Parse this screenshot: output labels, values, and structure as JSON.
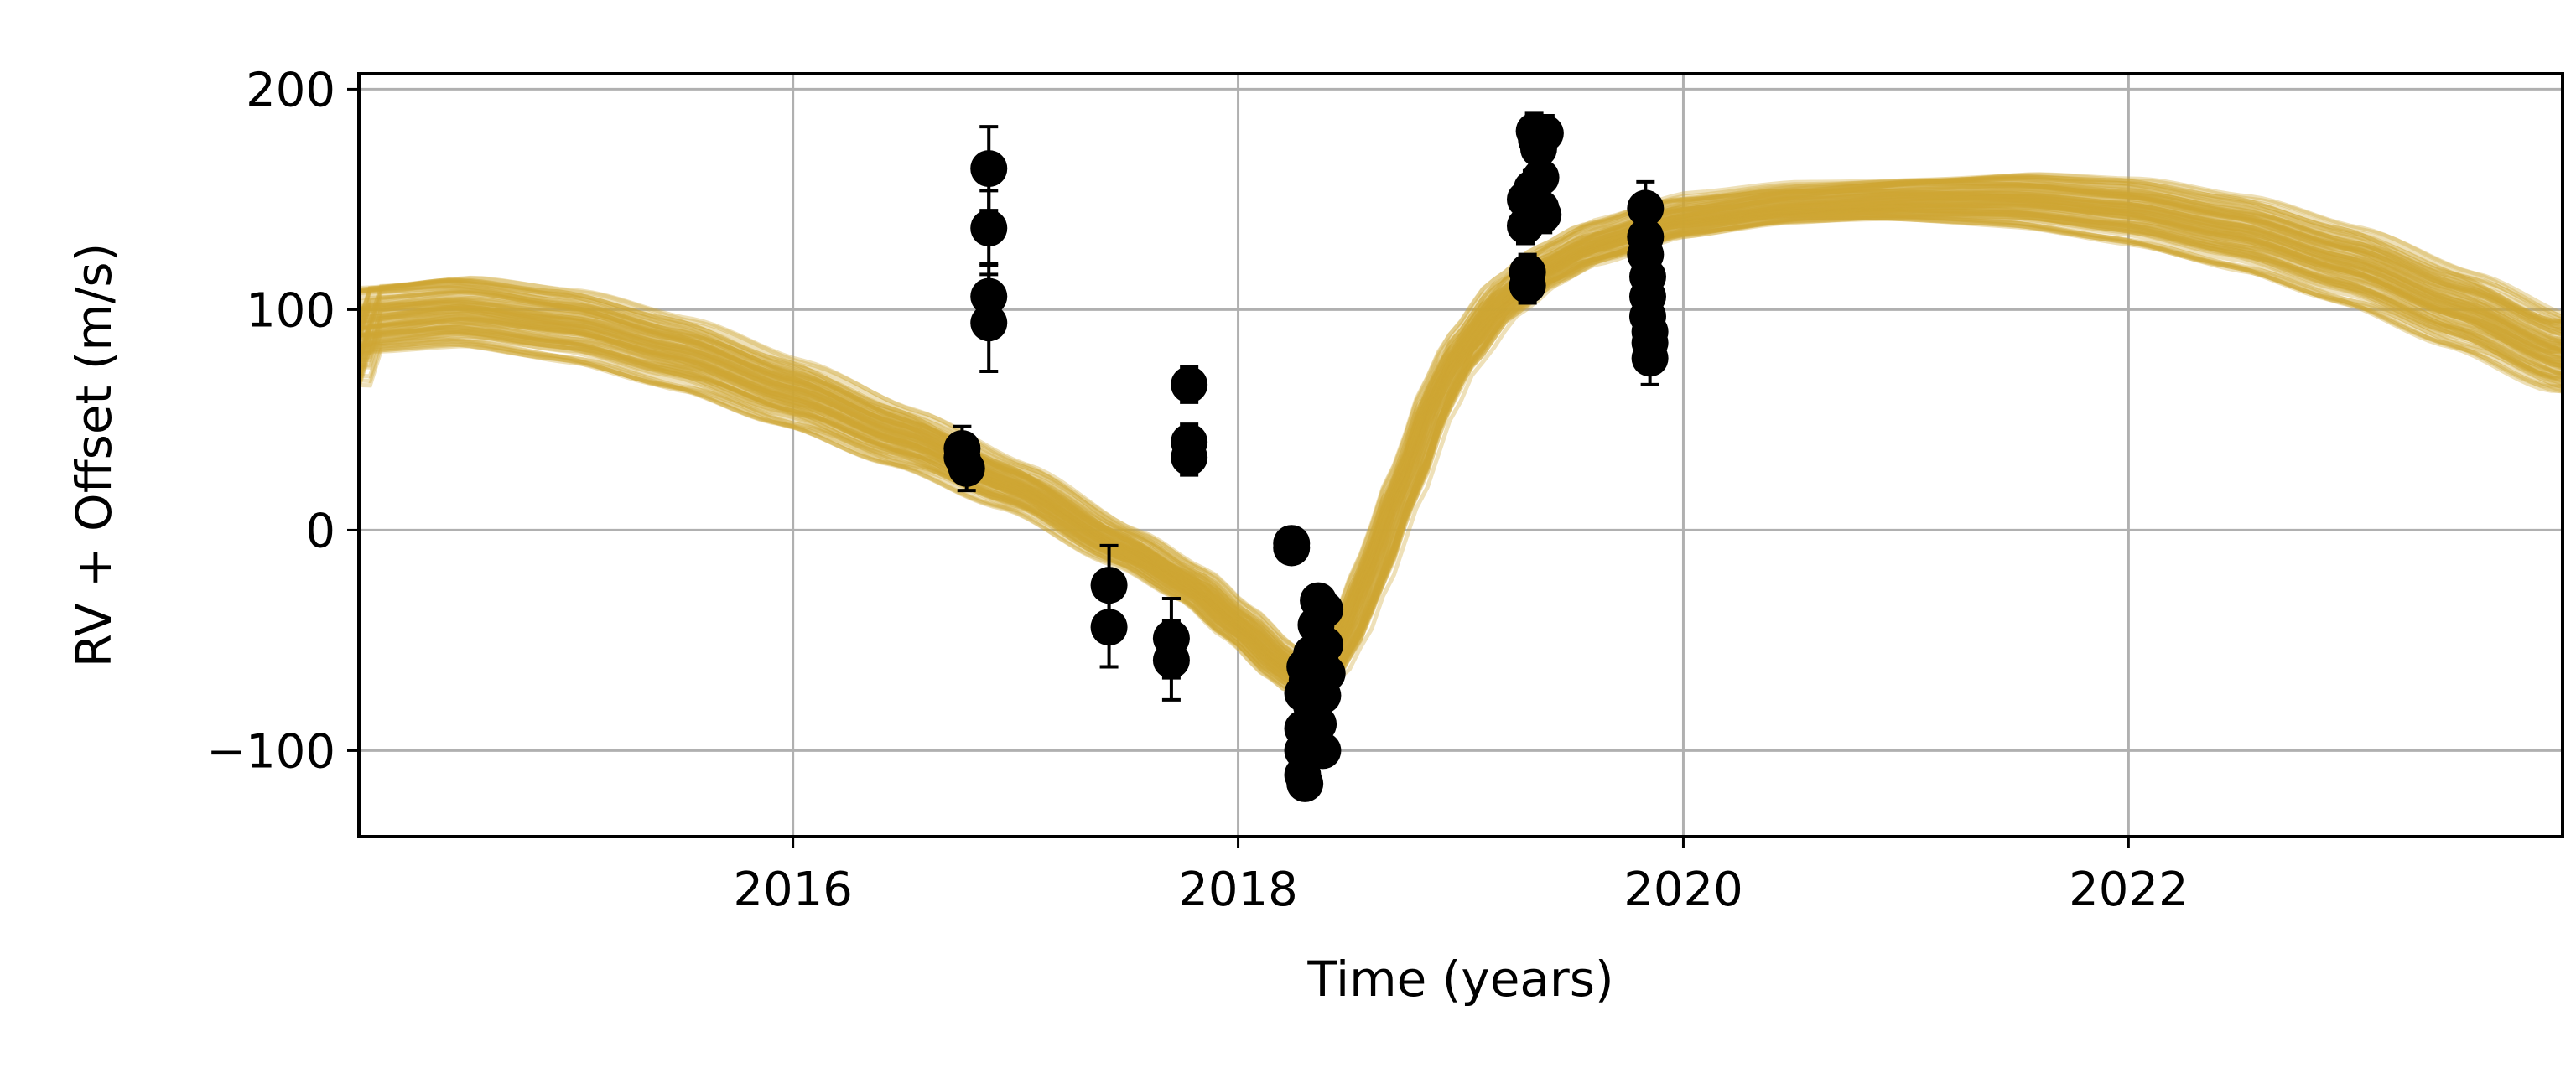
{
  "chart_data": {
    "type": "line",
    "title": "",
    "xlabel": "Time (years)",
    "ylabel": "RV + Offset (m/s)",
    "xlim": [
      2014.05,
      2023.95
    ],
    "ylim": [
      -139,
      207
    ],
    "xticks": [
      2016,
      2018,
      2020,
      2022
    ],
    "yticks": [
      -100,
      0,
      100,
      200
    ],
    "xtick_labels": [
      "2016",
      "2018",
      "2020",
      "2022"
    ],
    "ytick_labels": [
      "−100",
      "0",
      "100",
      "200"
    ],
    "grid": true,
    "legend": "none",
    "model_color": "#CDA535",
    "model_opacity": 0.35,
    "model_curve_count": 100,
    "model_median": [
      [
        2014.05,
        96
      ],
      [
        2014.5,
        100
      ],
      [
        2015.0,
        93
      ],
      [
        2015.5,
        80
      ],
      [
        2016.0,
        62
      ],
      [
        2016.5,
        42
      ],
      [
        2017.0,
        20
      ],
      [
        2017.5,
        -8
      ],
      [
        2017.8,
        -25
      ],
      [
        2018.0,
        -42
      ],
      [
        2018.2,
        -60
      ],
      [
        2018.3,
        -67
      ],
      [
        2018.4,
        -62
      ],
      [
        2018.5,
        -45
      ],
      [
        2018.6,
        -20
      ],
      [
        2018.75,
        20
      ],
      [
        2018.9,
        60
      ],
      [
        2019.0,
        80
      ],
      [
        2019.2,
        105
      ],
      [
        2019.4,
        120
      ],
      [
        2019.6,
        130
      ],
      [
        2020.0,
        142
      ],
      [
        2020.5,
        148
      ],
      [
        2021.0,
        150
      ],
      [
        2021.5,
        150
      ],
      [
        2022.0,
        145
      ],
      [
        2022.5,
        135
      ],
      [
        2023.0,
        120
      ],
      [
        2023.5,
        100
      ],
      [
        2023.95,
        80
      ]
    ],
    "data_color": "#000000",
    "series": [
      {
        "values": [
          {
            "x": 2016.76,
            "y": 37,
            "err": 10
          },
          {
            "x": 2016.76,
            "y": 33,
            "err": 10
          },
          {
            "x": 2016.78,
            "y": 28,
            "err": 10
          },
          {
            "x": 2016.88,
            "y": 164,
            "err": 19
          },
          {
            "x": 2016.88,
            "y": 137,
            "err": 17
          },
          {
            "x": 2016.88,
            "y": 106,
            "err": 15
          },
          {
            "x": 2016.88,
            "y": 94,
            "err": 22
          },
          {
            "x": 2017.42,
            "y": -25,
            "err": 18
          },
          {
            "x": 2017.42,
            "y": -44,
            "err": 18
          },
          {
            "x": 2017.7,
            "y": -49,
            "err": 18
          },
          {
            "x": 2017.7,
            "y": -59,
            "err": 18
          },
          {
            "x": 2017.78,
            "y": 66,
            "err": 8
          },
          {
            "x": 2017.78,
            "y": 40,
            "err": 8
          },
          {
            "x": 2017.78,
            "y": 33,
            "err": 8
          },
          {
            "x": 2018.24,
            "y": -6,
            "err": 3
          },
          {
            "x": 2018.24,
            "y": -8,
            "err": 3
          },
          {
            "x": 2018.29,
            "y": -100,
            "err": 6
          },
          {
            "x": 2018.29,
            "y": -111,
            "err": 6
          },
          {
            "x": 2018.29,
            "y": -90,
            "err": 6
          },
          {
            "x": 2018.29,
            "y": -74,
            "err": 6
          },
          {
            "x": 2018.3,
            "y": -62,
            "err": 6
          },
          {
            "x": 2018.3,
            "y": -115,
            "err": 6
          },
          {
            "x": 2018.31,
            "y": -68,
            "err": 6
          },
          {
            "x": 2018.33,
            "y": -80,
            "err": 6
          },
          {
            "x": 2018.33,
            "y": -56,
            "err": 6
          },
          {
            "x": 2018.34,
            "y": -98,
            "err": 6
          },
          {
            "x": 2018.35,
            "y": -71,
            "err": 6
          },
          {
            "x": 2018.35,
            "y": -43,
            "err": 6
          },
          {
            "x": 2018.36,
            "y": -32,
            "err": 6
          },
          {
            "x": 2018.36,
            "y": -88,
            "err": 6
          },
          {
            "x": 2018.37,
            "y": -60,
            "err": 6
          },
          {
            "x": 2018.38,
            "y": -75,
            "err": 6
          },
          {
            "x": 2018.38,
            "y": -100,
            "err": 6
          },
          {
            "x": 2018.39,
            "y": -36,
            "err": 6
          },
          {
            "x": 2018.39,
            "y": -52,
            "err": 6
          },
          {
            "x": 2018.4,
            "y": -65,
            "err": 6
          },
          {
            "x": 2019.29,
            "y": 150,
            "err": 8
          },
          {
            "x": 2019.29,
            "y": 138,
            "err": 8
          },
          {
            "x": 2019.3,
            "y": 117,
            "err": 8
          },
          {
            "x": 2019.3,
            "y": 111,
            "err": 8
          },
          {
            "x": 2019.32,
            "y": 155,
            "err": 8
          },
          {
            "x": 2019.33,
            "y": 181,
            "err": 8
          },
          {
            "x": 2019.34,
            "y": 177,
            "err": 8
          },
          {
            "x": 2019.35,
            "y": 173,
            "err": 8
          },
          {
            "x": 2019.36,
            "y": 160,
            "err": 8
          },
          {
            "x": 2019.36,
            "y": 146,
            "err": 8
          },
          {
            "x": 2019.37,
            "y": 143,
            "err": 8
          },
          {
            "x": 2019.38,
            "y": 180,
            "err": 8
          },
          {
            "x": 2019.83,
            "y": 146,
            "err": 12
          },
          {
            "x": 2019.83,
            "y": 133,
            "err": 12
          },
          {
            "x": 2019.83,
            "y": 125,
            "err": 12
          },
          {
            "x": 2019.84,
            "y": 115,
            "err": 12
          },
          {
            "x": 2019.84,
            "y": 106,
            "err": 12
          },
          {
            "x": 2019.84,
            "y": 97,
            "err": 12
          },
          {
            "x": 2019.85,
            "y": 90,
            "err": 12
          },
          {
            "x": 2019.85,
            "y": 85,
            "err": 12
          },
          {
            "x": 2019.85,
            "y": 78,
            "err": 12
          }
        ]
      }
    ]
  }
}
